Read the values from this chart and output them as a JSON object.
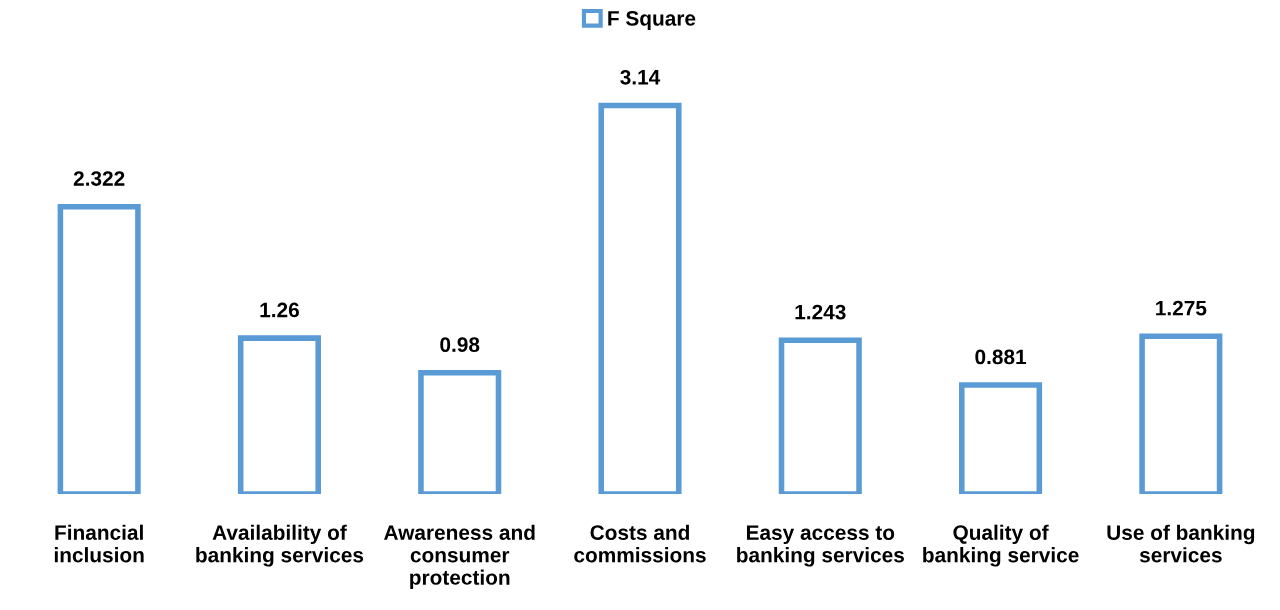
{
  "chart_data": {
    "type": "bar",
    "categories": [
      "Financial inclusion",
      "Availability of banking services",
      "Awareness and consumer protection",
      "Costs and commissions",
      "Easy access to banking services",
      "Quality of banking service",
      "Use of banking services"
    ],
    "series": [
      {
        "name": "F Square",
        "color": "#5b9bd5",
        "values": [
          2.322,
          1.26,
          0.98,
          3.14,
          1.243,
          0.881,
          1.275
        ]
      }
    ],
    "data_labels": true,
    "legend": "top",
    "grid": false,
    "tick_labels": "x"
  }
}
